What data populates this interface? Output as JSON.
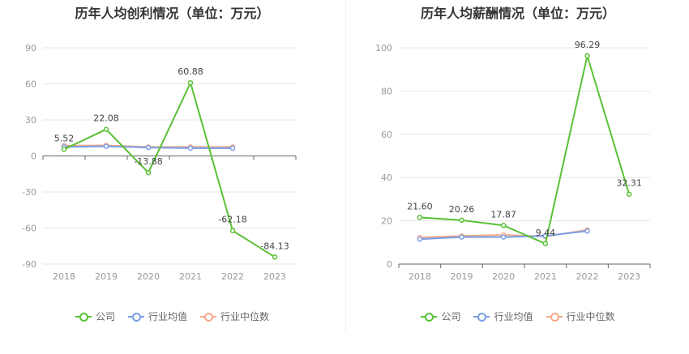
{
  "colors": {
    "company": "#5ac136",
    "industry_avg": "#7a9ee6",
    "industry_median": "#f4a98a"
  },
  "legend": [
    "公司",
    "行业均值",
    "行业中位数"
  ],
  "chart_data": [
    {
      "type": "line",
      "title": "历年人均创利情况（单位：万元）",
      "categories": [
        "2018",
        "2019",
        "2020",
        "2021",
        "2022",
        "2023"
      ],
      "ylim": [
        -90,
        90
      ],
      "yticks": [
        90,
        60,
        30,
        0,
        -30,
        -60,
        -90
      ],
      "series": [
        {
          "name": "公司",
          "values": [
            5.52,
            22.08,
            -13.88,
            60.88,
            -62.18,
            -84.13
          ],
          "labels": [
            "5.52",
            "22.08",
            "-13.88",
            "60.88",
            "-62.18",
            "-84.13"
          ]
        },
        {
          "name": "行业均值",
          "values": [
            7.5,
            8.0,
            7.0,
            6.5,
            6.5,
            null
          ]
        },
        {
          "name": "行业中位数",
          "values": [
            8.5,
            8.8,
            7.5,
            7.5,
            7.5,
            null
          ]
        }
      ],
      "grid": true,
      "legend_position": "bottom"
    },
    {
      "type": "line",
      "title": "历年人均薪酬情况（单位：万元）",
      "categories": [
        "2018",
        "2019",
        "2020",
        "2021",
        "2022",
        "2023"
      ],
      "ylim": [
        0,
        100
      ],
      "yticks": [
        100,
        80,
        60,
        40,
        20,
        0
      ],
      "series": [
        {
          "name": "公司",
          "values": [
            21.6,
            20.26,
            17.87,
            9.44,
            96.29,
            32.31
          ],
          "labels": [
            "21.60",
            "20.26",
            "17.87",
            "9.44",
            "96.29",
            "32.31"
          ]
        },
        {
          "name": "行业均值",
          "values": [
            11.5,
            12.5,
            12.5,
            13.0,
            15.3,
            null
          ]
        },
        {
          "name": "行业中位数",
          "values": [
            12.3,
            13.0,
            13.5,
            12.8,
            15.8,
            null
          ]
        }
      ],
      "grid": true,
      "legend_position": "bottom"
    }
  ]
}
